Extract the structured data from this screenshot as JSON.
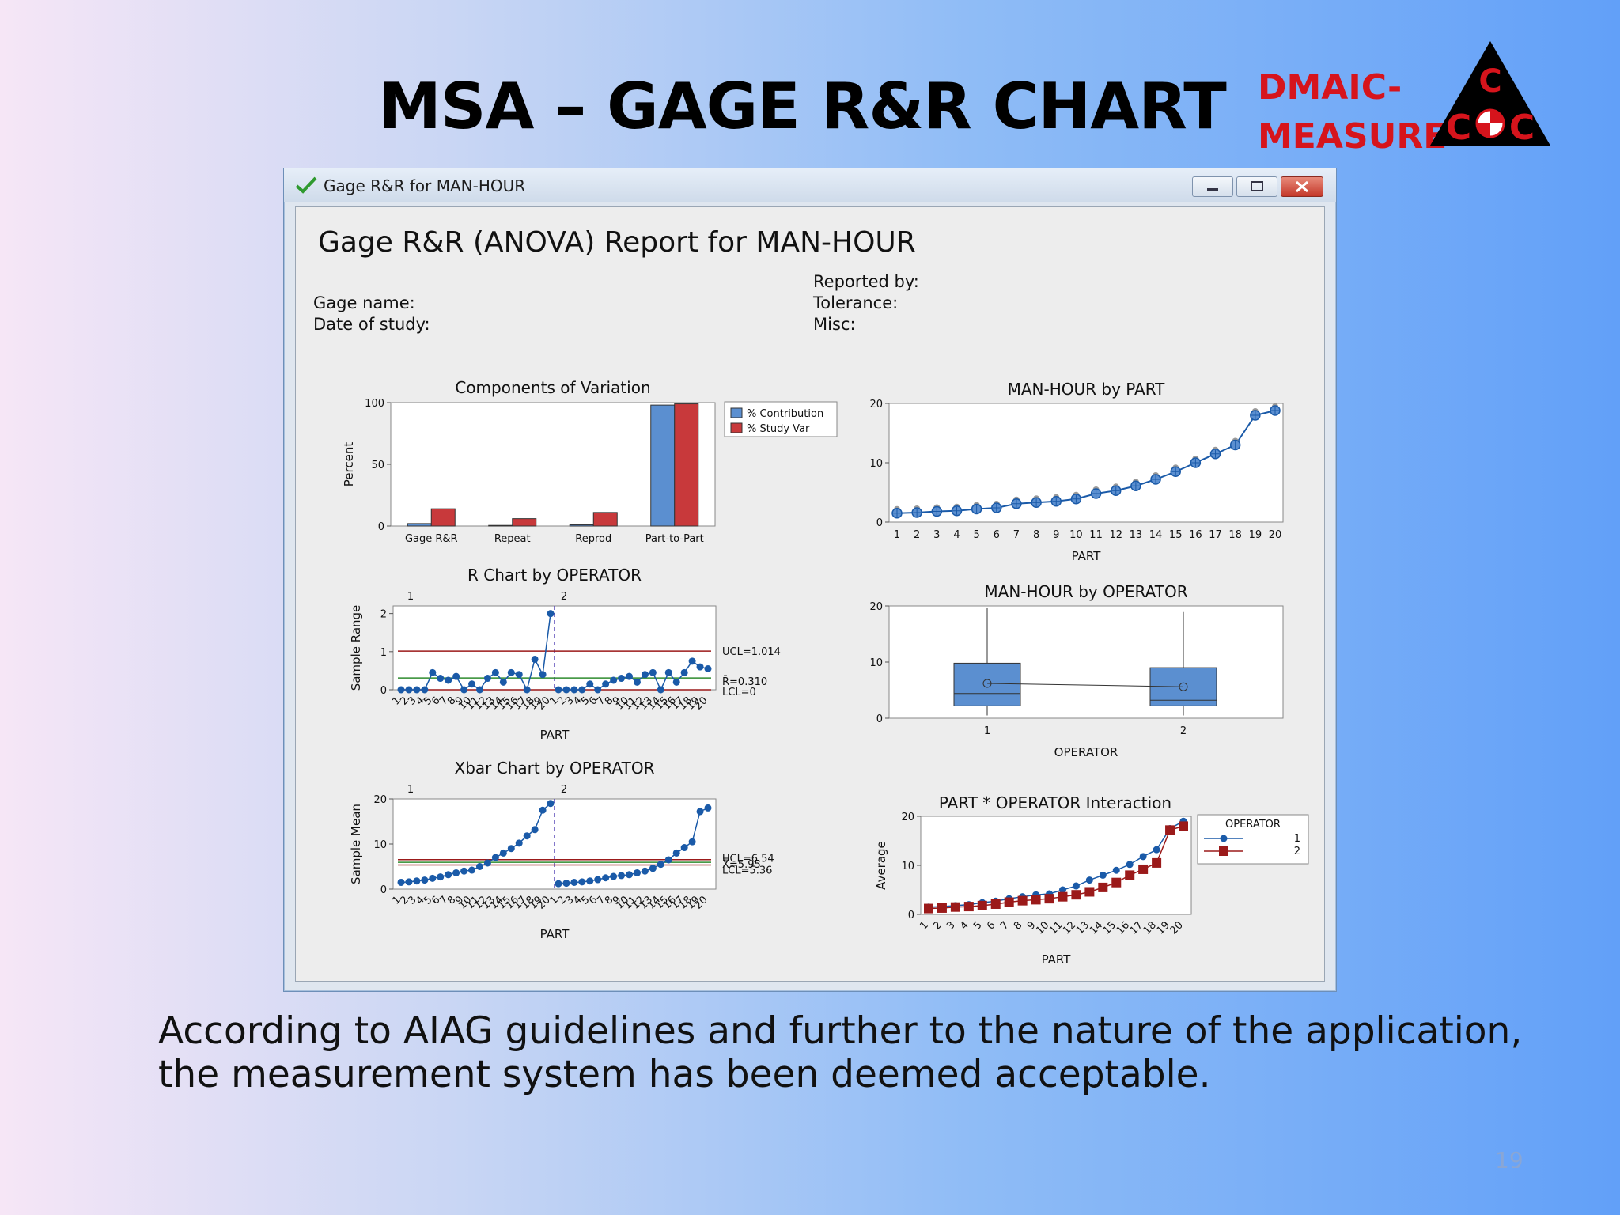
{
  "slide": {
    "title": "MSA – GAGE R&R CHART",
    "badge_line1": "DMAIC-",
    "badge_line2": "MEASURE",
    "logo_letter": "C",
    "caption": "According to AIAG guidelines and further to the nature of the application, the measurement system has been deemed acceptable.",
    "page_number": "19"
  },
  "window": {
    "title": "Gage R&R for MAN-HOUR",
    "report_title": "Gage R&R (ANOVA) Report for MAN-HOUR",
    "gage_name_label": "Gage name:",
    "date_label": "Date of study:",
    "reported_by_label": "Reported by:",
    "tolerance_label": "Tolerance:",
    "misc_label": "Misc:"
  },
  "colors": {
    "blue": "#5b8fd0",
    "red": "#c8393b",
    "navy": "#1a5aa8",
    "darkred": "#9b1a1a",
    "green": "#2e8b2e"
  },
  "chart_data": [
    {
      "type": "bar",
      "title": "Components of Variation",
      "ylabel": "Percent",
      "ylim": [
        0,
        100
      ],
      "yticks": [
        "0",
        "50",
        "100"
      ],
      "categories": [
        "Gage R&R",
        "Repeat",
        "Reprod",
        "Part-to-Part"
      ],
      "series": [
        {
          "name": "% Contribution",
          "values": [
            2,
            0.5,
            1,
            98
          ]
        },
        {
          "name": "% Study Var",
          "values": [
            14,
            6,
            11,
            99
          ]
        }
      ],
      "legend": "right"
    },
    {
      "type": "line",
      "title": "MAN-HOUR by PART",
      "xlabel": "PART",
      "ylim": [
        0,
        20
      ],
      "yticks": [
        "0",
        "10",
        "20"
      ],
      "x": [
        "1",
        "2",
        "3",
        "4",
        "5",
        "6",
        "7",
        "8",
        "9",
        "10",
        "11",
        "12",
        "13",
        "14",
        "15",
        "16",
        "17",
        "18",
        "19",
        "20"
      ],
      "values": [
        1.5,
        1.6,
        1.8,
        1.9,
        2.2,
        2.4,
        3.1,
        3.3,
        3.5,
        3.9,
        4.8,
        5.3,
        6.1,
        7.2,
        8.5,
        10.0,
        11.5,
        13.0,
        18.0,
        18.8
      ]
    },
    {
      "type": "line",
      "title": "R Chart by OPERATOR",
      "xlabel": "PART",
      "ylabel": "Sample Range",
      "ylim": [
        0,
        2.2
      ],
      "yticks": [
        "0",
        "1",
        "2"
      ],
      "panels": [
        "1",
        "2"
      ],
      "ucl_label": "UCL=1.014",
      "rbar_label": "R̄=0.310",
      "lcl_label": "LCL=0",
      "ucl": 1.014,
      "rbar": 0.31,
      "lcl": 0,
      "part_labels": [
        "1",
        "2",
        "3",
        "4",
        "5",
        "6",
        "7",
        "8",
        "9",
        "10",
        "11",
        "12",
        "13",
        "14",
        "15",
        "16",
        "17",
        "18",
        "19",
        "20"
      ],
      "operator1": [
        0,
        0,
        0,
        0,
        0.45,
        0.3,
        0.25,
        0.35,
        0,
        0.15,
        0,
        0.3,
        0.45,
        0.2,
        0.45,
        0.4,
        0,
        0.8,
        0.4,
        2.0
      ],
      "operator2": [
        0,
        0,
        0,
        0,
        0.15,
        0,
        0.15,
        0.25,
        0.3,
        0.35,
        0.2,
        0.4,
        0.45,
        0,
        0.45,
        0.2,
        0.45,
        0.75,
        0.6,
        0.55
      ]
    },
    {
      "type": "box",
      "title": "MAN-HOUR by OPERATOR",
      "xlabel": "OPERATOR",
      "ylim": [
        0,
        20
      ],
      "yticks": [
        "0",
        "10",
        "20"
      ],
      "categories": [
        "1",
        "2"
      ],
      "boxes": [
        {
          "min": 0.5,
          "q1": 2.2,
          "median": 4.4,
          "q3": 9.8,
          "max": 19.6,
          "mean": 6.2
        },
        {
          "min": 0.5,
          "q1": 2.2,
          "median": 3.2,
          "q3": 9.0,
          "max": 18.9,
          "mean": 5.6
        }
      ]
    },
    {
      "type": "line",
      "title": "Xbar Chart by OPERATOR",
      "xlabel": "PART",
      "ylabel": "Sample Mean",
      "ylim": [
        0,
        20
      ],
      "yticks": [
        "0",
        "10",
        "20"
      ],
      "panels": [
        "1",
        "2"
      ],
      "ucl_label": "UCL=6.54",
      "xbar_label": "X̿=5.95",
      "lcl_label": "LCL=5.36",
      "ucl": 6.54,
      "xbar": 5.95,
      "lcl": 5.36,
      "part_labels": [
        "1",
        "2",
        "3",
        "4",
        "5",
        "6",
        "7",
        "8",
        "9",
        "10",
        "11",
        "12",
        "13",
        "14",
        "15",
        "16",
        "17",
        "18",
        "19",
        "20"
      ],
      "operator1": [
        1.5,
        1.6,
        1.8,
        2.0,
        2.4,
        2.7,
        3.2,
        3.6,
        4.0,
        4.2,
        5.0,
        5.8,
        7.0,
        8.0,
        9.0,
        10.2,
        11.8,
        13.2,
        17.5,
        19.0
      ],
      "operator2": [
        1.2,
        1.3,
        1.5,
        1.6,
        1.8,
        2.1,
        2.5,
        2.8,
        3.0,
        3.2,
        3.6,
        4.0,
        4.6,
        5.5,
        6.5,
        8.0,
        9.2,
        10.5,
        17.2,
        18.0
      ]
    },
    {
      "type": "line",
      "title": "PART * OPERATOR Interaction",
      "xlabel": "PART",
      "ylabel": "Average",
      "ylim": [
        0,
        20
      ],
      "yticks": [
        "0",
        "10",
        "20"
      ],
      "legend_title": "OPERATOR",
      "x": [
        "1",
        "2",
        "3",
        "4",
        "5",
        "6",
        "7",
        "8",
        "9",
        "10",
        "11",
        "12",
        "13",
        "14",
        "15",
        "16",
        "17",
        "18",
        "19",
        "20"
      ],
      "series": [
        {
          "name": "1",
          "values": [
            1.5,
            1.6,
            1.8,
            2.0,
            2.4,
            2.7,
            3.2,
            3.6,
            4.0,
            4.2,
            5.0,
            5.8,
            7.0,
            8.0,
            9.0,
            10.2,
            11.8,
            13.2,
            17.5,
            19.0
          ]
        },
        {
          "name": "2",
          "values": [
            1.2,
            1.3,
            1.5,
            1.6,
            1.8,
            2.1,
            2.5,
            2.8,
            3.0,
            3.2,
            3.6,
            4.0,
            4.6,
            5.5,
            6.5,
            8.0,
            9.2,
            10.5,
            17.2,
            18.0
          ]
        }
      ]
    }
  ]
}
